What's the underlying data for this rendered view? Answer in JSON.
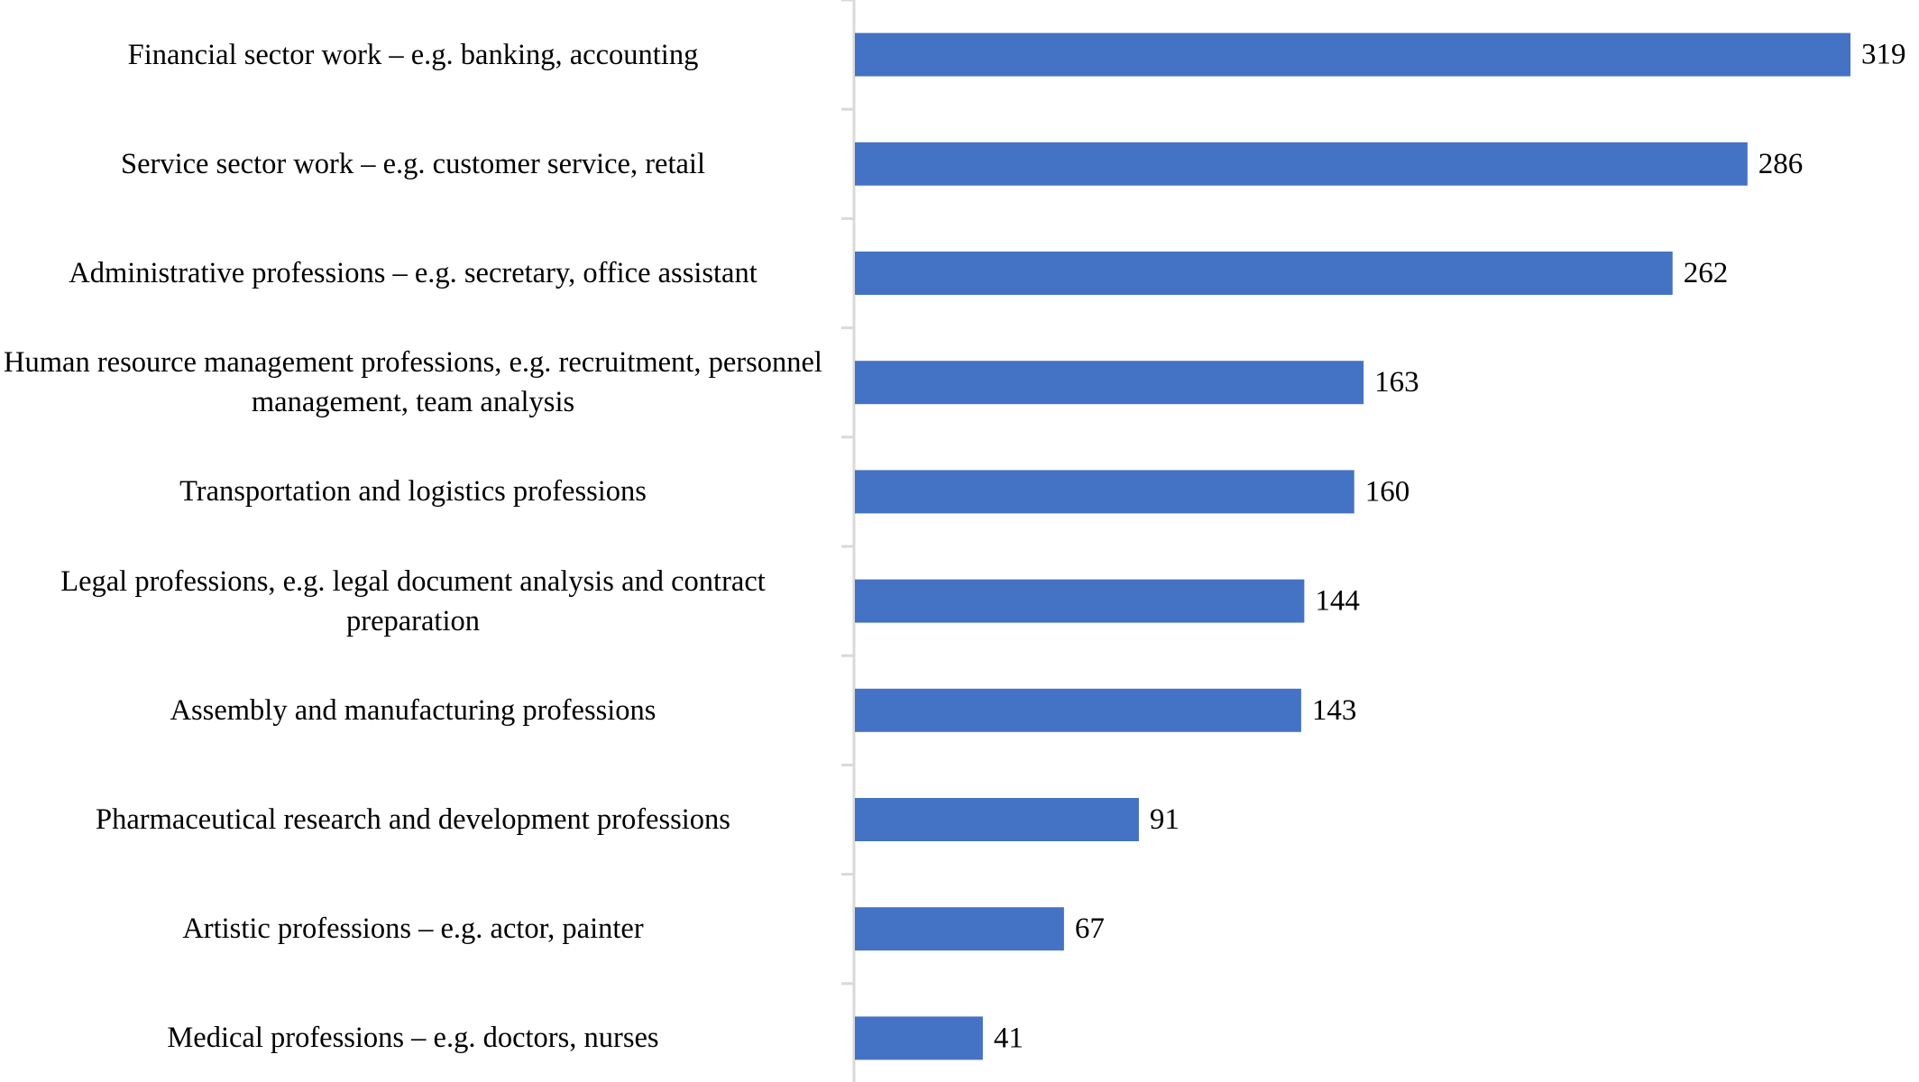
{
  "chart_data": {
    "type": "bar",
    "orientation": "horizontal",
    "title": "",
    "xlabel": "",
    "ylabel": "",
    "xlim": [
      0,
      319
    ],
    "grid": false,
    "legend": "none",
    "bar_color": "#4472C4",
    "axis_color": "#D9D9D9",
    "categories": [
      "Financial sector work – e.g. banking, accounting",
      "Service sector work – e.g. customer service, retail",
      "Administrative professions – e.g. secretary, office assistant",
      "Human resource management professions, e.g. recruitment, personnel management, team analysis",
      "Transportation and logistics professions",
      "Legal professions, e.g. legal document analysis and contract preparation",
      "Assembly and manufacturing professions",
      "Pharmaceutical research and development professions",
      "Artistic professions – e.g. actor, painter",
      "Medical professions – e.g. doctors, nurses"
    ],
    "values": [
      319,
      286,
      262,
      163,
      160,
      144,
      143,
      91,
      67,
      41
    ],
    "data_labels": [
      "319",
      "286",
      "262",
      "163",
      "160",
      "144",
      "143",
      "91",
      "67",
      "41"
    ]
  }
}
